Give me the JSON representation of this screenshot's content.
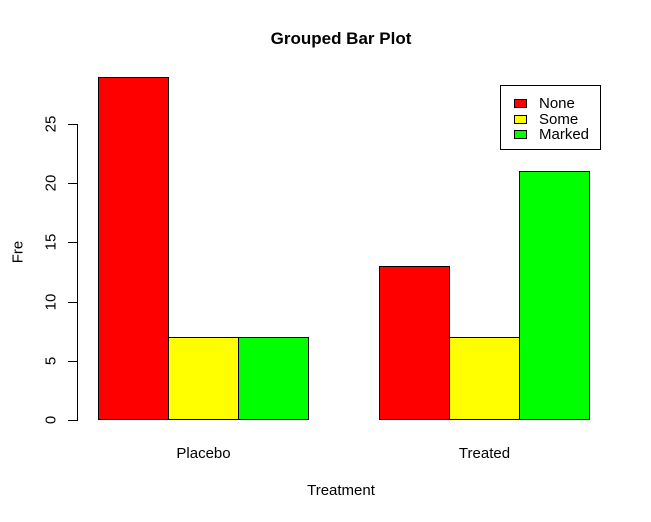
{
  "chart_data": {
    "type": "bar",
    "grouped": true,
    "title": "Grouped Bar Plot",
    "xlabel": "Treatment",
    "ylabel": "Fre",
    "categories": [
      "Placebo",
      "Treated"
    ],
    "series": [
      {
        "name": "None",
        "color": "#ff0000",
        "values": [
          29,
          13
        ]
      },
      {
        "name": "Some",
        "color": "#ffff00",
        "values": [
          7,
          7
        ]
      },
      {
        "name": "Marked",
        "color": "#00ff00",
        "values": [
          7,
          21
        ]
      }
    ],
    "yticks": [
      0,
      5,
      10,
      15,
      20,
      25
    ],
    "ylim": [
      0,
      29
    ],
    "grid": false,
    "legend": {
      "position": "top-right",
      "entries": [
        "None",
        "Some",
        "Marked"
      ]
    },
    "bar_border_color": "#000000",
    "axis_color": "#000000",
    "background_color": "#ffffff"
  }
}
